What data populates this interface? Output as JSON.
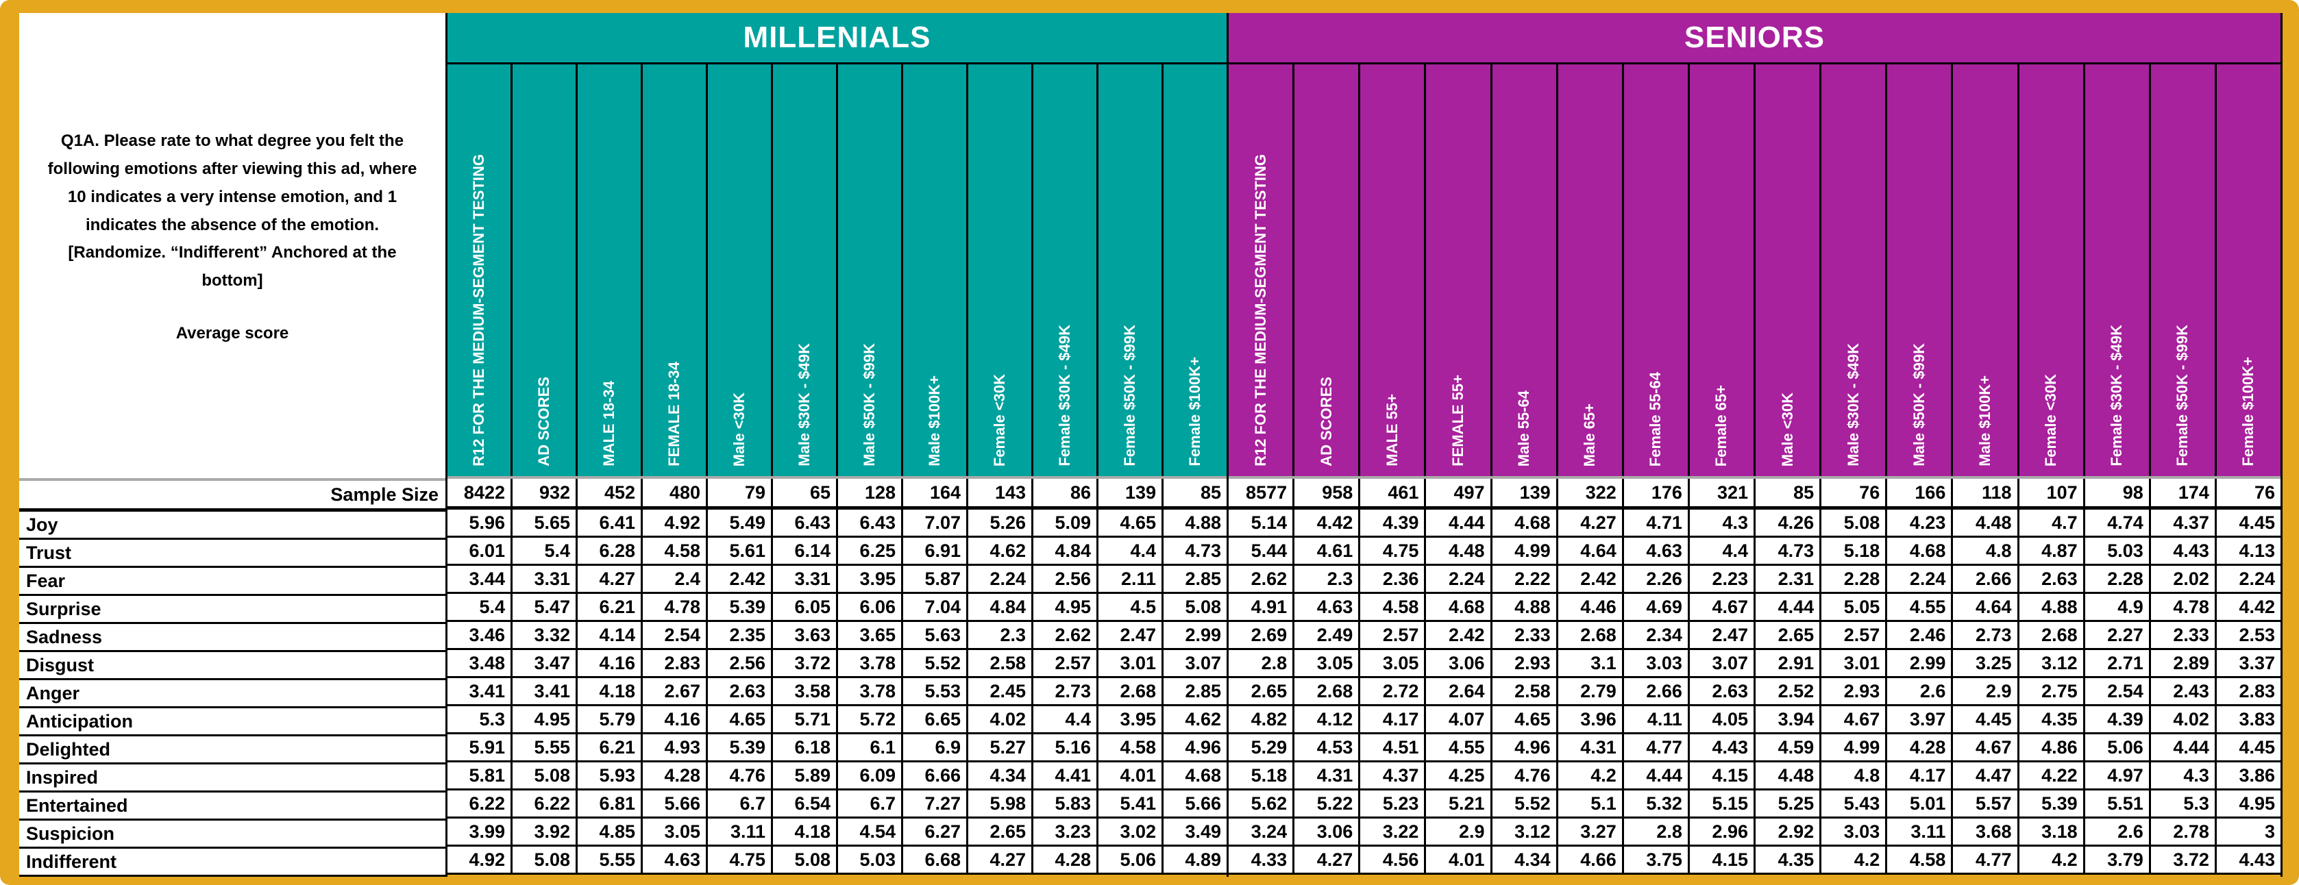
{
  "question": {
    "text": "Q1A. Please rate to what degree you felt the\nfollowing emotions after viewing this ad, where\n10 indicates a very intense emotion, and 1\nindicates the absence of the emotion.\n[Randomize. “Indifferent” Anchored at the\nbottom]",
    "average_label": "Average score"
  },
  "sample_label": "Sample Size",
  "row_labels": [
    "Joy",
    "Trust",
    "Fear",
    "Surprise",
    "Sadness",
    "Disgust",
    "Anger",
    "Anticipation",
    "Delighted",
    "Inspired",
    "Entertained",
    "Suspicion",
    "Indifferent"
  ],
  "colors": {
    "frame": "#E5A71E",
    "millennials_accent": "#00A29E",
    "seniors_accent": "#A8219D",
    "gridline": "#000000",
    "header_separator": "#A9A9A9"
  },
  "sections": [
    {
      "id": "millennials",
      "title": "MILLENIALS",
      "color": "#00A29E",
      "headers": [
        "R12 FOR THE MEDIUM-SEGMENT TESTING",
        "AD SCORES",
        "MALE 18-34",
        "FEMALE 18-34",
        "Male <30K",
        "Male $30K - $49K",
        "Male $50K - $99K",
        "Male $100K+",
        "Female <30K",
        "Female $30K - $49K",
        "Female $50K - $99K",
        "Female $100K+"
      ],
      "sample_sizes": [
        8422,
        932,
        452,
        480,
        79,
        65,
        128,
        164,
        143,
        86,
        139,
        85
      ],
      "rows": [
        [
          5.96,
          5.65,
          6.41,
          4.92,
          5.49,
          6.43,
          6.43,
          7.07,
          5.26,
          5.09,
          4.65,
          4.88
        ],
        [
          6.01,
          5.4,
          6.28,
          4.58,
          5.61,
          6.14,
          6.25,
          6.91,
          4.62,
          4.84,
          4.4,
          4.73
        ],
        [
          3.44,
          3.31,
          4.27,
          2.4,
          2.42,
          3.31,
          3.95,
          5.87,
          2.24,
          2.56,
          2.11,
          2.85
        ],
        [
          5.4,
          5.47,
          6.21,
          4.78,
          5.39,
          6.05,
          6.06,
          7.04,
          4.84,
          4.95,
          4.5,
          5.08
        ],
        [
          3.46,
          3.32,
          4.14,
          2.54,
          2.35,
          3.63,
          3.65,
          5.63,
          2.3,
          2.62,
          2.47,
          2.99
        ],
        [
          3.48,
          3.47,
          4.16,
          2.83,
          2.56,
          3.72,
          3.78,
          5.52,
          2.58,
          2.57,
          3.01,
          3.07
        ],
        [
          3.41,
          3.41,
          4.18,
          2.67,
          2.63,
          3.58,
          3.78,
          5.53,
          2.45,
          2.73,
          2.68,
          2.85
        ],
        [
          5.3,
          4.95,
          5.79,
          4.16,
          4.65,
          5.71,
          5.72,
          6.65,
          4.02,
          4.4,
          3.95,
          4.62
        ],
        [
          5.91,
          5.55,
          6.21,
          4.93,
          5.39,
          6.18,
          6.1,
          6.9,
          5.27,
          5.16,
          4.58,
          4.96
        ],
        [
          5.81,
          5.08,
          5.93,
          4.28,
          4.76,
          5.89,
          6.09,
          6.66,
          4.34,
          4.41,
          4.01,
          4.68
        ],
        [
          6.22,
          6.22,
          6.81,
          5.66,
          6.7,
          6.54,
          6.7,
          7.27,
          5.98,
          5.83,
          5.41,
          5.66
        ],
        [
          3.99,
          3.92,
          4.85,
          3.05,
          3.11,
          4.18,
          4.54,
          6.27,
          2.65,
          3.23,
          3.02,
          3.49
        ],
        [
          4.92,
          5.08,
          5.55,
          4.63,
          4.75,
          5.08,
          5.03,
          6.68,
          4.27,
          4.28,
          5.06,
          4.89
        ]
      ]
    },
    {
      "id": "seniors",
      "title": "SENIORS",
      "color": "#A8219D",
      "headers": [
        "R12 FOR THE MEDIUM-SEGMENT TESTING",
        "AD SCORES",
        "MALE 55+",
        "FEMALE 55+",
        "Male 55-64",
        "Male 65+",
        "Female 55-64",
        "Female 65+",
        "Male <30K",
        "Male $30K - $49K",
        "Male $50K - $99K",
        "Male $100K+",
        "Female <30K",
        "Female $30K - $49K",
        "Female $50K - $99K",
        "Female $100K+"
      ],
      "sample_sizes": [
        8577,
        958,
        461,
        497,
        139,
        322,
        176,
        321,
        85,
        76,
        166,
        118,
        107,
        98,
        174,
        76
      ],
      "rows": [
        [
          5.14,
          4.42,
          4.39,
          4.44,
          4.68,
          4.27,
          4.71,
          4.3,
          4.26,
          5.08,
          4.23,
          4.48,
          4.7,
          4.74,
          4.37,
          4.45
        ],
        [
          5.44,
          4.61,
          4.75,
          4.48,
          4.99,
          4.64,
          4.63,
          4.4,
          4.73,
          5.18,
          4.68,
          4.8,
          4.87,
          5.03,
          4.43,
          4.13
        ],
        [
          2.62,
          2.3,
          2.36,
          2.24,
          2.22,
          2.42,
          2.26,
          2.23,
          2.31,
          2.28,
          2.24,
          2.66,
          2.63,
          2.28,
          2.02,
          2.24
        ],
        [
          4.91,
          4.63,
          4.58,
          4.68,
          4.88,
          4.46,
          4.69,
          4.67,
          4.44,
          5.05,
          4.55,
          4.64,
          4.88,
          4.9,
          4.78,
          4.42
        ],
        [
          2.69,
          2.49,
          2.57,
          2.42,
          2.33,
          2.68,
          2.34,
          2.47,
          2.65,
          2.57,
          2.46,
          2.73,
          2.68,
          2.27,
          2.33,
          2.53
        ],
        [
          2.8,
          3.05,
          3.05,
          3.06,
          2.93,
          3.1,
          3.03,
          3.07,
          2.91,
          3.01,
          2.99,
          3.25,
          3.12,
          2.71,
          2.89,
          3.37
        ],
        [
          2.65,
          2.68,
          2.72,
          2.64,
          2.58,
          2.79,
          2.66,
          2.63,
          2.52,
          2.93,
          2.6,
          2.9,
          2.75,
          2.54,
          2.43,
          2.83
        ],
        [
          4.82,
          4.12,
          4.17,
          4.07,
          4.65,
          3.96,
          4.11,
          4.05,
          3.94,
          4.67,
          3.97,
          4.45,
          4.35,
          4.39,
          4.02,
          3.83
        ],
        [
          5.29,
          4.53,
          4.51,
          4.55,
          4.96,
          4.31,
          4.77,
          4.43,
          4.59,
          4.99,
          4.28,
          4.67,
          4.86,
          5.06,
          4.44,
          4.45
        ],
        [
          5.18,
          4.31,
          4.37,
          4.25,
          4.76,
          4.2,
          4.44,
          4.15,
          4.48,
          4.8,
          4.17,
          4.47,
          4.22,
          4.97,
          4.3,
          3.86
        ],
        [
          5.62,
          5.22,
          5.23,
          5.21,
          5.52,
          5.1,
          5.32,
          5.15,
          5.25,
          5.43,
          5.01,
          5.57,
          5.39,
          5.51,
          5.3,
          4.95
        ],
        [
          3.24,
          3.06,
          3.22,
          2.9,
          3.12,
          3.27,
          2.8,
          2.96,
          2.92,
          3.03,
          3.11,
          3.68,
          3.18,
          2.6,
          2.78,
          3
        ],
        [
          4.33,
          4.27,
          4.56,
          4.01,
          4.34,
          4.66,
          3.75,
          4.15,
          4.35,
          4.2,
          4.58,
          4.77,
          4.2,
          3.79,
          3.72,
          4.43
        ]
      ]
    }
  ]
}
